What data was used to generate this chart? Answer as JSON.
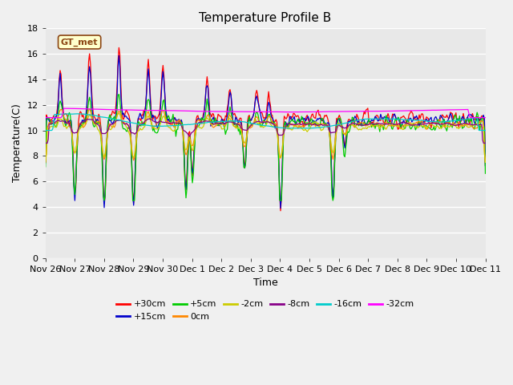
{
  "title": "Temperature Profile B",
  "xlabel": "Time",
  "ylabel": "Temperature(C)",
  "annotation": "GT_met",
  "ylim": [
    0,
    18
  ],
  "yticks": [
    0,
    2,
    4,
    6,
    8,
    10,
    12,
    14,
    16,
    18
  ],
  "fig_bg": "#f0f0f0",
  "ax_bg": "#e8e8e8",
  "series": [
    {
      "label": "+30cm",
      "color": "#ff0000"
    },
    {
      "label": "+15cm",
      "color": "#0000cc"
    },
    {
      "label": "+5cm",
      "color": "#00cc00"
    },
    {
      "label": "0cm",
      "color": "#ff8800"
    },
    {
      "label": "-2cm",
      "color": "#cccc00"
    },
    {
      "label": "-8cm",
      "color": "#880088"
    },
    {
      "label": "-16cm",
      "color": "#00cccc"
    },
    {
      "label": "-32cm",
      "color": "#ff00ff"
    }
  ],
  "xtick_labels": [
    "Nov 26",
    "Nov 27",
    "Nov 28",
    "Nov 29",
    "Nov 30",
    "Dec 1",
    "Dec 2",
    "Dec 3",
    "Dec 4",
    "Dec 5",
    "Dec 6",
    "Dec 7",
    "Dec 8",
    "Dec 9",
    "Dec 10",
    "Dec 11"
  ],
  "n_points": 480,
  "seed": 7
}
